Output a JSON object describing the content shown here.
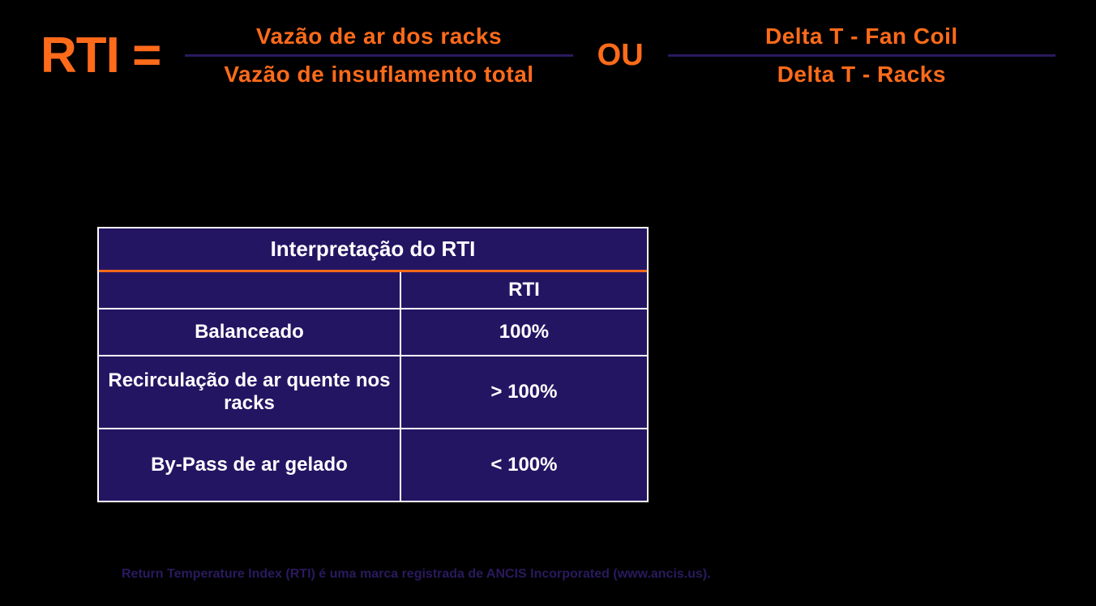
{
  "colors": {
    "orange": "#ff6b1a",
    "dark_purple": "#2a1a5e",
    "table_bg": "#241563",
    "white": "#ffffff",
    "black": "#000000"
  },
  "formula": {
    "label": "RTI =",
    "fraction1": {
      "numerator": "Vazão de ar dos racks",
      "denominator": "Vazão de insuflamento total"
    },
    "or_label": "OU",
    "fraction2": {
      "numerator": "Delta T - Fan Coil",
      "denominator": "Delta T - Racks"
    }
  },
  "table": {
    "title": "Interpretação do RTI",
    "header_col1": "",
    "header_col2": "RTI",
    "rows": [
      {
        "label": "Balanceado",
        "value": "100%"
      },
      {
        "label": "Recirculação de ar quente nos racks",
        "value": "> 100%"
      },
      {
        "label": "By-Pass de ar gelado",
        "value": "< 100%"
      }
    ]
  },
  "footer": "Return Temperature Index (RTI) é uma marca registrada de ANCIS Incorporated (www.ancis.us)."
}
